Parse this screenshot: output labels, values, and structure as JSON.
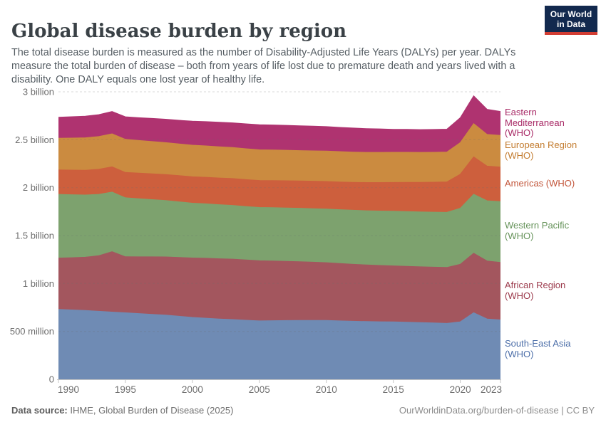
{
  "header": {
    "title": "Global disease burden by region",
    "subtitle": "The total disease burden is measured as the number of Disability-Adjusted Life Years (DALYs) per year. DALYs measure the total burden of disease – both from years of life lost due to premature death and years lived with a disability. One DALY equals one lost year of healthy life."
  },
  "logo": {
    "line1": "Our World",
    "line2": "in Data",
    "bg_color": "#12294e",
    "bar_color": "#d23d33"
  },
  "footer": {
    "source_label": "Data source:",
    "source_text": " IHME, Global Burden of Disease (2025)",
    "right_text": "OurWorldinData.org/burden-of-disease | CC BY"
  },
  "chart_data": {
    "type": "area",
    "stacked": true,
    "title": "Global disease burden by region",
    "values_unit": "million DALYs per year",
    "grid": "horizontal-dashed",
    "legend_position": "right",
    "ylim_millions": [
      0,
      3000
    ],
    "x": [
      1990,
      1991,
      1992,
      1993,
      1994,
      1995,
      1996,
      1997,
      1998,
      1999,
      2000,
      2001,
      2002,
      2003,
      2004,
      2005,
      2006,
      2007,
      2008,
      2009,
      2010,
      2011,
      2012,
      2013,
      2014,
      2015,
      2016,
      2017,
      2018,
      2019,
      2020,
      2021,
      2022,
      2023
    ],
    "x_ticks": [
      1990,
      1995,
      2000,
      2005,
      2010,
      2015,
      2020,
      2023
    ],
    "y_ticks": [
      {
        "value_millions": 0,
        "label": "0"
      },
      {
        "value_millions": 500,
        "label": "500 million"
      },
      {
        "value_millions": 1000,
        "label": "1 billion"
      },
      {
        "value_millions": 1500,
        "label": "1.5 billion"
      },
      {
        "value_millions": 2000,
        "label": "2 billion"
      },
      {
        "value_millions": 2500,
        "label": "2.5 billion"
      },
      {
        "value_millions": 3000,
        "label": "3 billion"
      }
    ],
    "series_bottom_to_top": [
      {
        "id": "south-east-asia",
        "name": "South-East Asia (WHO)",
        "legend_lines": [
          "South-East Asia",
          "(WHO)"
        ],
        "fill_color": "#6f8bb4",
        "label_color": "#4d6fa9",
        "values_millions": [
          730,
          724,
          718,
          710,
          702,
          694,
          686,
          678,
          670,
          658,
          646,
          638,
          630,
          624,
          616,
          610,
          612,
          613,
          614,
          614,
          614,
          610,
          606,
          603,
          601,
          600,
          596,
          592,
          588,
          584,
          600,
          695,
          630,
          620
        ]
      },
      {
        "id": "african-region",
        "name": "African Region (WHO)",
        "legend_lines": [
          "African Region",
          "(WHO)"
        ],
        "fill_color": "#a3565e",
        "label_color": "#9c3a4c",
        "values_millions": [
          535,
          545,
          556,
          580,
          630,
          585,
          592,
          600,
          607,
          614,
          620,
          625,
          628,
          630,
          629,
          627,
          623,
          618,
          613,
          608,
          603,
          598,
          594,
          590,
          587,
          584,
          583,
          582,
          582,
          583,
          600,
          621,
          605,
          600
        ]
      },
      {
        "id": "western-pacific",
        "name": "Western Pacific (WHO)",
        "legend_lines": [
          "Western Pacific",
          "(WHO)"
        ],
        "fill_color": "#7da26e",
        "label_color": "#66935a",
        "values_millions": [
          665,
          657,
          649,
          640,
          622,
          615,
          606,
          597,
          589,
          580,
          572,
          568,
          564,
          561,
          558,
          556,
          556,
          557,
          558,
          559,
          560,
          562,
          564,
          566,
          568,
          570,
          572,
          573,
          574,
          575,
          585,
          615,
          628,
          635
        ]
      },
      {
        "id": "americas",
        "name": "Americas (WHO)",
        "legend_lines": [
          "Americas (WHO)"
        ],
        "fill_color": "#cd5f3d",
        "label_color": "#c2553a",
        "values_millions": [
          255,
          257,
          259,
          261,
          263,
          265,
          267,
          269,
          271,
          273,
          275,
          277,
          279,
          280,
          281,
          282,
          283,
          284,
          285,
          286,
          287,
          289,
          291,
          294,
          297,
          300,
          304,
          308,
          313,
          318,
          355,
          390,
          362,
          360
        ]
      },
      {
        "id": "european-region",
        "name": "European Region (WHO)",
        "legend_lines": [
          "European Region",
          "(WHO)"
        ],
        "fill_color": "#cb8b40",
        "label_color": "#c37c2f",
        "values_millions": [
          330,
          334,
          338,
          342,
          345,
          345,
          341,
          337,
          333,
          331,
          330,
          328,
          326,
          324,
          322,
          320,
          319,
          318,
          317,
          317,
          318,
          317,
          316,
          315,
          315,
          315,
          314,
          313,
          312,
          312,
          330,
          347,
          330,
          330
        ]
      },
      {
        "id": "eastern-mediterranean",
        "name": "Eastern Mediterranean (WHO)",
        "legend_lines": [
          "Eastern",
          "Mediterranean",
          "(WHO)"
        ],
        "fill_color": "#af3370",
        "label_color": "#a82a66",
        "values_millions": [
          220,
          223,
          226,
          229,
          232,
          235,
          238,
          241,
          244,
          247,
          250,
          253,
          255,
          257,
          260,
          262,
          261,
          260,
          258,
          257,
          255,
          253,
          251,
          248,
          245,
          240,
          239,
          238,
          238,
          238,
          260,
          290,
          262,
          250
        ]
      }
    ]
  }
}
